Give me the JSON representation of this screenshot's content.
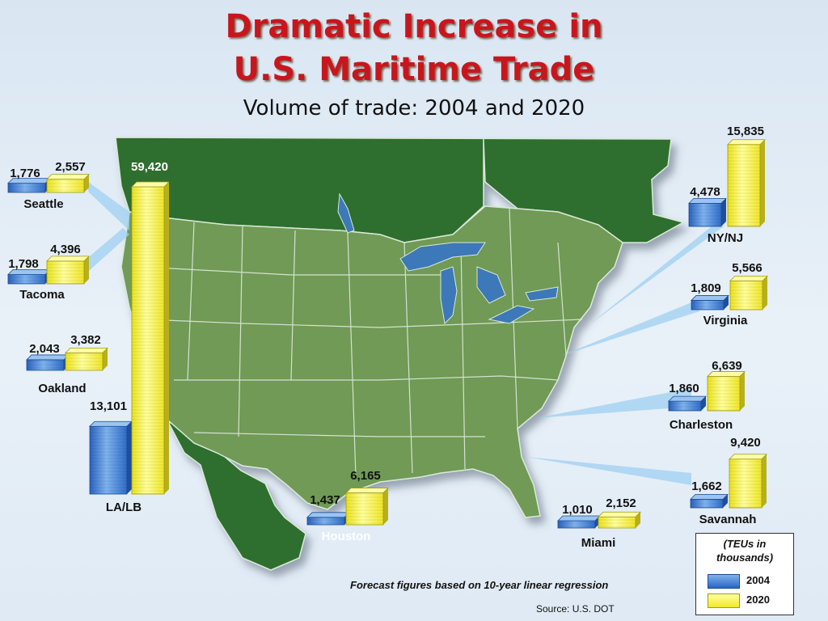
{
  "title_line1": "Dramatic Increase in",
  "title_line2": "U.S. Maritime Trade",
  "subtitle": "Volume of trade: 2004 and 2020",
  "legend": {
    "unit": "(TEUs in thousands)",
    "series": [
      {
        "name": "2004",
        "color": "#3a78d6"
      },
      {
        "name": "2020",
        "color": "#f5ee2e"
      }
    ]
  },
  "footnote": "Forecast figures based on 10-year linear regression",
  "source": "Source:  U.S. DOT",
  "colors": {
    "land_us": "#6f9a55",
    "land_other": "#2f6e2d",
    "water": "#3e78b9",
    "bar_2004": "#3a78d6",
    "bar_2020": "#f5ee2e"
  },
  "chart_data": {
    "type": "bar",
    "title": "Dramatic Increase in U.S. Maritime Trade",
    "subtitle": "Volume of trade: 2004 and 2020",
    "categories": [
      "Seattle",
      "Tacoma",
      "Oakland",
      "LA/LB",
      "Houston",
      "Miami",
      "Savannah",
      "Charleston",
      "Virginia",
      "NY/NJ"
    ],
    "series": [
      {
        "name": "2004",
        "values": [
          1776,
          1798,
          2043,
          13101,
          1437,
          1010,
          1662,
          1860,
          1809,
          4478
        ]
      },
      {
        "name": "2020",
        "values": [
          2557,
          4396,
          3382,
          59420,
          6165,
          2152,
          9420,
          6639,
          5566,
          15835
        ]
      }
    ],
    "value_labels": {
      "2004": [
        "1,776",
        "1,798",
        "2,043",
        "13,101",
        "1,437",
        "1,010",
        "1,662",
        "1,860",
        "1,809",
        "4,478"
      ],
      "2020": [
        "2,557",
        "4,396",
        "3,382",
        "59,420",
        "6,165",
        "2,152",
        "9,420",
        "6,639",
        "5,566",
        "15,835"
      ]
    },
    "ylabel": "TEUs in thousands",
    "legend_position": "bottom-right"
  }
}
